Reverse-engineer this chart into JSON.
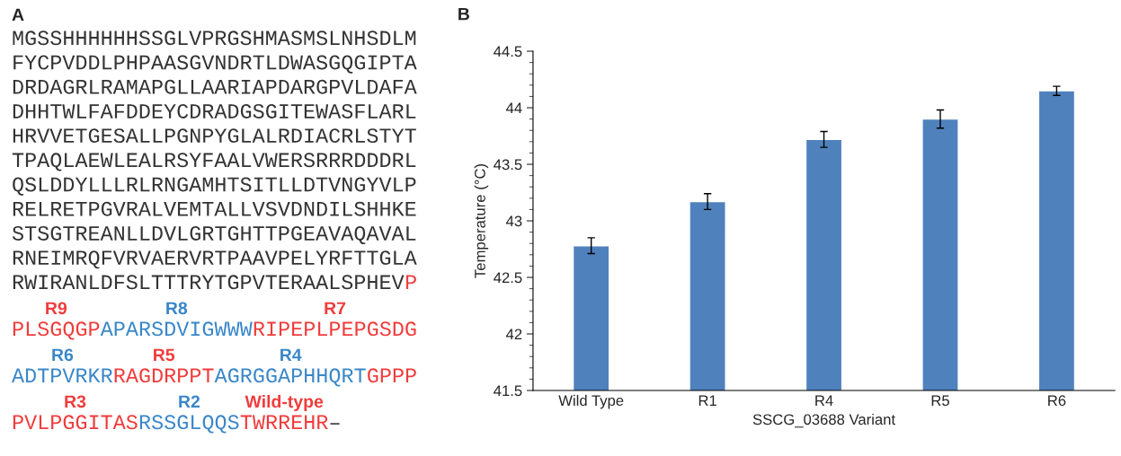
{
  "chart_data": [
    {
      "type": "other",
      "title": "A",
      "categories": [
        null,
        null,
        null,
        null,
        null,
        null,
        null,
        null,
        null,
        null,
        null,
        null,
        "R9",
        "R8",
        "R7",
        "R6",
        "R5",
        "R4",
        null,
        "R3",
        "R2",
        "Wild-type",
        null
      ],
      "annotations": [
        "MGSSHHHHHHSSGLVPRGSHMASMSLNHSDLM",
        "FYCPVDDLPHPAASGVNDRTLDWASGQGIPTA",
        "DRDAGRLRAMAPGLLAARIAPDARGPVLDAFA",
        "DHHTWLFAFDDEYCDRADGSGITEWASFLARL",
        "HRVVETGESALLPGNPYGLALRDIACRLSTYT",
        "TPAQLAEWLEALRSYFAALVWERSRRRDDDRL",
        "QSLDDYLLLRLRNGAMHTSITLLDTVNGYVLP",
        "RELRETPGVRALVEMTALLVSVDNDILSHHKE",
        "STSGTREANLLDVLGRTGHTTPGEAVAQAVAL",
        "RNEIMRQFVRVAERVRTPAAVPELYRFTTGLA",
        "RWIRANLDFSLTTTRYTGPVTERAALSPHEV",
        "P",
        "PLSGQGP",
        "APARSDVIGWWW",
        "RIPEPLPEPGSDG",
        "ADTPVRKR",
        "RAGDRPPT",
        "AGRGGAPHHQRT",
        "GPPP",
        "PVLPGGITAS",
        "RSSGLQQS",
        "TWRREHR",
        "–"
      ],
      "colors": [
        "#333333",
        "#333333",
        "#333333",
        "#333333",
        "#333333",
        "#333333",
        "#333333",
        "#333333",
        "#333333",
        "#333333",
        "#333333",
        "#f03c3c",
        "#f03c3c",
        "#3a87c8",
        "#f03c3c",
        "#3a87c8",
        "#f03c3c",
        "#3a87c8",
        "#f03c3c",
        "#f03c3c",
        "#3a87c8",
        "#f03c3c",
        "#333333"
      ]
    },
    {
      "type": "bar",
      "title": "B",
      "xlabel": "SSCG_03688 Variant",
      "ylabel": "Temperature (°C)",
      "categories": [
        "Wild Type",
        "R1",
        "R4",
        "R5",
        "R6"
      ],
      "values": [
        42.78,
        43.17,
        43.72,
        43.9,
        44.15
      ],
      "errors": [
        0.07,
        0.07,
        0.07,
        0.08,
        0.04
      ],
      "color": "#4f81bd",
      "ylim": [
        41.5,
        44.5
      ],
      "yticks": [
        41.5,
        42,
        42.5,
        43,
        43.5,
        44,
        44.5
      ],
      "grid": false,
      "legend": false
    }
  ]
}
